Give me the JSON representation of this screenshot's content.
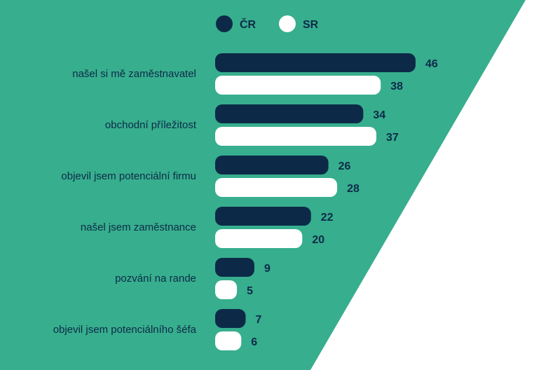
{
  "colors": {
    "background_shape": "#37ae8d",
    "page": "#ffffff",
    "series_cr": "#0c2a48",
    "series_sr": "#ffffff",
    "text": "#0d2a49"
  },
  "chart_data": {
    "type": "bar",
    "orientation": "horizontal",
    "title": "",
    "xlabel": "",
    "ylabel": "",
    "xlim": [
      0,
      46
    ],
    "grid": false,
    "legend_position": "top",
    "categories": [
      "našel si mě zaměstnavatel",
      "obchodní příležitost",
      "objevil jsem potenciální firmu",
      "našel jsem zaměstnance",
      "pozvání na rande",
      "objevil jsem potenciálního šéfa"
    ],
    "series": [
      {
        "name": "ČR",
        "values": [
          46,
          34,
          26,
          22,
          9,
          7
        ]
      },
      {
        "name": "SR",
        "values": [
          38,
          37,
          28,
          20,
          5,
          6
        ]
      }
    ]
  }
}
